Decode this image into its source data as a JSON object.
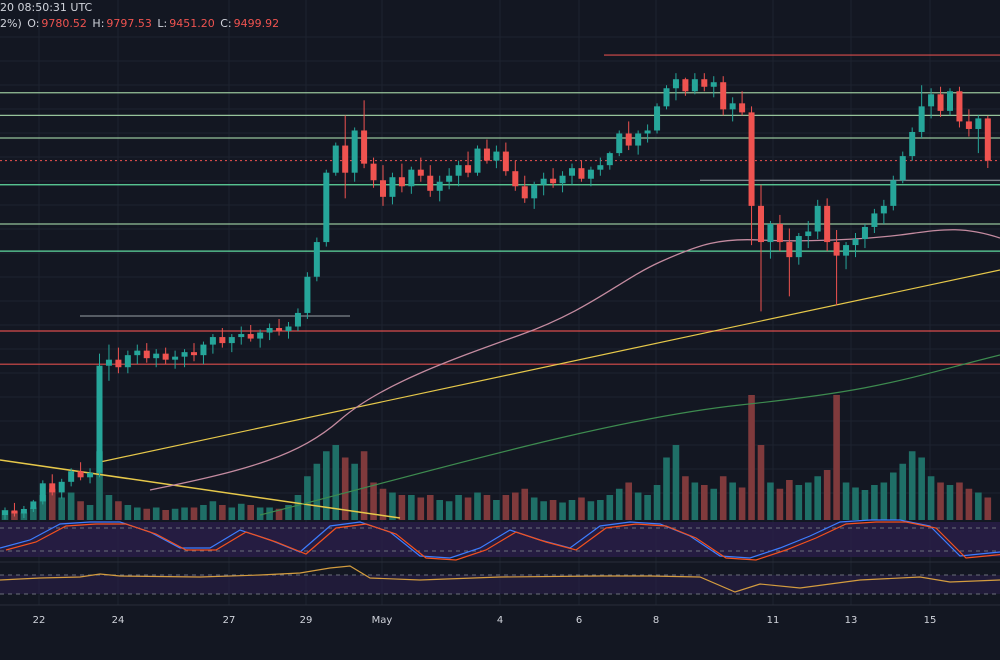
{
  "header": {
    "datetime": "20 08:50:31 UTC",
    "change_pct": "2%)",
    "o_label": "O:",
    "o_value": "9780.52",
    "h_label": "H:",
    "h_value": "9797.53",
    "l_label": "L:",
    "l_value": "9451.20",
    "c_label": "C:",
    "c_value": "9499.92"
  },
  "x_ticks": [
    "22",
    "24",
    "27",
    "29",
    "May",
    "4",
    "6",
    "8",
    "11",
    "13",
    "15"
  ],
  "colors": {
    "background": "#131722",
    "up": "#26a69a",
    "down": "#ef5350",
    "volume_up": "#1f6f67",
    "volume_down": "#7f3a3c",
    "hline_green": "#a5d6a7",
    "hline_bright_green": "#69f0ae",
    "hline_red": "#ef5350",
    "ma_pink": "#c48ba0",
    "ma_yellow": "#e6c84a",
    "ma_green": "#3d8b4f",
    "stoch_blue": "#3d7dff",
    "stoch_red": "#f4511e",
    "rsi_orange": "#d39c3f",
    "panel_fill": "#2a1e4a"
  },
  "chart_data": {
    "type": "candlestick",
    "title": "",
    "price_range": [
      7150,
      10300
    ],
    "horizontal_levels": [
      {
        "price": 10200,
        "color": "red"
      },
      {
        "price": 9950,
        "color": "green"
      },
      {
        "price": 9800,
        "color": "green"
      },
      {
        "price": 9650,
        "color": "green"
      },
      {
        "price": 9340,
        "color": "bright-green"
      },
      {
        "price": 9080,
        "color": "green"
      },
      {
        "price": 8900,
        "color": "bright-green"
      },
      {
        "price": 8370,
        "color": "red"
      },
      {
        "price": 8150,
        "color": "red"
      }
    ],
    "candles_ohlc": [
      [
        7150,
        7200,
        7120,
        7180
      ],
      [
        7180,
        7230,
        7140,
        7160
      ],
      [
        7160,
        7210,
        7130,
        7190
      ],
      [
        7190,
        7250,
        7170,
        7240
      ],
      [
        7240,
        7380,
        7220,
        7360
      ],
      [
        7360,
        7420,
        7280,
        7300
      ],
      [
        7300,
        7390,
        7260,
        7370
      ],
      [
        7370,
        7460,
        7340,
        7440
      ],
      [
        7440,
        7500,
        7380,
        7400
      ],
      [
        7400,
        7460,
        7360,
        7430
      ],
      [
        7430,
        8220,
        7400,
        8140
      ],
      [
        8140,
        8280,
        8040,
        8180
      ],
      [
        8180,
        8260,
        8090,
        8130
      ],
      [
        8130,
        8240,
        8090,
        8210
      ],
      [
        8210,
        8280,
        8150,
        8240
      ],
      [
        8240,
        8290,
        8160,
        8190
      ],
      [
        8190,
        8250,
        8130,
        8220
      ],
      [
        8220,
        8260,
        8150,
        8180
      ],
      [
        8180,
        8240,
        8120,
        8200
      ],
      [
        8200,
        8250,
        8130,
        8230
      ],
      [
        8230,
        8290,
        8170,
        8210
      ],
      [
        8210,
        8300,
        8150,
        8280
      ],
      [
        8280,
        8350,
        8220,
        8330
      ],
      [
        8330,
        8390,
        8260,
        8290
      ],
      [
        8290,
        8350,
        8230,
        8330
      ],
      [
        8330,
        8400,
        8280,
        8350
      ],
      [
        8350,
        8410,
        8300,
        8320
      ],
      [
        8320,
        8380,
        8260,
        8360
      ],
      [
        8360,
        8420,
        8310,
        8390
      ],
      [
        8390,
        8450,
        8340,
        8370
      ],
      [
        8370,
        8430,
        8320,
        8400
      ],
      [
        8400,
        8520,
        8370,
        8490
      ],
      [
        8490,
        8760,
        8450,
        8730
      ],
      [
        8730,
        8990,
        8700,
        8960
      ],
      [
        8960,
        9440,
        8930,
        9420
      ],
      [
        9420,
        9620,
        9400,
        9600
      ],
      [
        9600,
        9800,
        9250,
        9420
      ],
      [
        9420,
        9720,
        9360,
        9700
      ],
      [
        9700,
        9900,
        9450,
        9480
      ],
      [
        9480,
        9520,
        9320,
        9370
      ],
      [
        9370,
        9470,
        9200,
        9260
      ],
      [
        9260,
        9420,
        9210,
        9390
      ],
      [
        9390,
        9480,
        9290,
        9330
      ],
      [
        9330,
        9460,
        9280,
        9440
      ],
      [
        9440,
        9520,
        9360,
        9400
      ],
      [
        9400,
        9470,
        9260,
        9300
      ],
      [
        9300,
        9400,
        9230,
        9360
      ],
      [
        9360,
        9450,
        9310,
        9400
      ],
      [
        9400,
        9500,
        9330,
        9470
      ],
      [
        9470,
        9560,
        9390,
        9420
      ],
      [
        9420,
        9600,
        9400,
        9580
      ],
      [
        9580,
        9640,
        9480,
        9500
      ],
      [
        9500,
        9600,
        9450,
        9560
      ],
      [
        9560,
        9620,
        9400,
        9430
      ],
      [
        9430,
        9500,
        9300,
        9330
      ],
      [
        9330,
        9400,
        9220,
        9250
      ],
      [
        9250,
        9360,
        9180,
        9340
      ],
      [
        9340,
        9420,
        9270,
        9380
      ],
      [
        9380,
        9450,
        9320,
        9350
      ],
      [
        9350,
        9430,
        9290,
        9400
      ],
      [
        9400,
        9480,
        9340,
        9450
      ],
      [
        9450,
        9500,
        9360,
        9380
      ],
      [
        9380,
        9460,
        9330,
        9440
      ],
      [
        9440,
        9520,
        9400,
        9470
      ],
      [
        9470,
        9560,
        9440,
        9550
      ],
      [
        9550,
        9700,
        9530,
        9680
      ],
      [
        9680,
        9760,
        9570,
        9600
      ],
      [
        9600,
        9700,
        9540,
        9680
      ],
      [
        9680,
        9740,
        9620,
        9700
      ],
      [
        9700,
        9880,
        9680,
        9860
      ],
      [
        9860,
        10000,
        9840,
        9980
      ],
      [
        9980,
        10080,
        9900,
        10040
      ],
      [
        10040,
        10050,
        9930,
        9960
      ],
      [
        9960,
        10080,
        9940,
        10040
      ],
      [
        10040,
        10080,
        9960,
        9990
      ],
      [
        9990,
        10060,
        9920,
        10020
      ],
      [
        10020,
        10060,
        9800,
        9840
      ],
      [
        9840,
        9920,
        9760,
        9880
      ],
      [
        9880,
        9960,
        9800,
        9820
      ],
      [
        9820,
        9860,
        8940,
        9200
      ],
      [
        9200,
        9340,
        8500,
        8960
      ],
      [
        8960,
        9100,
        8850,
        9080
      ],
      [
        9080,
        9140,
        8900,
        8960
      ],
      [
        8960,
        9050,
        8600,
        8860
      ],
      [
        8860,
        9020,
        8810,
        9000
      ],
      [
        9000,
        9100,
        8920,
        9030
      ],
      [
        9030,
        9240,
        8980,
        9200
      ],
      [
        9200,
        9250,
        8900,
        8960
      ],
      [
        8960,
        9040,
        8540,
        8870
      ],
      [
        8870,
        8960,
        8780,
        8940
      ],
      [
        8940,
        9020,
        8860,
        8980
      ],
      [
        8980,
        9080,
        8920,
        9060
      ],
      [
        9060,
        9180,
        9020,
        9150
      ],
      [
        9150,
        9240,
        9080,
        9200
      ],
      [
        9200,
        9400,
        9170,
        9370
      ],
      [
        9370,
        9560,
        9350,
        9530
      ],
      [
        9530,
        9720,
        9500,
        9690
      ],
      [
        9690,
        10000,
        9650,
        9860
      ],
      [
        9860,
        9980,
        9780,
        9940
      ],
      [
        9940,
        9990,
        9790,
        9830
      ],
      [
        9830,
        9980,
        9800,
        9960
      ],
      [
        9960,
        9990,
        9720,
        9760
      ],
      [
        9760,
        9840,
        9660,
        9710
      ],
      [
        9710,
        9800,
        9550,
        9780
      ],
      [
        9780,
        9797,
        9451,
        9500
      ]
    ],
    "volume_relative": [
      0.08,
      0.07,
      0.06,
      0.1,
      0.2,
      0.25,
      0.18,
      0.22,
      0.15,
      0.12,
      0.55,
      0.2,
      0.15,
      0.12,
      0.1,
      0.09,
      0.1,
      0.08,
      0.09,
      0.1,
      0.1,
      0.12,
      0.15,
      0.12,
      0.1,
      0.13,
      0.12,
      0.1,
      0.1,
      0.09,
      0.12,
      0.2,
      0.35,
      0.45,
      0.55,
      0.6,
      0.5,
      0.45,
      0.55,
      0.3,
      0.25,
      0.22,
      0.2,
      0.2,
      0.18,
      0.2,
      0.16,
      0.15,
      0.2,
      0.18,
      0.22,
      0.2,
      0.16,
      0.2,
      0.22,
      0.25,
      0.18,
      0.15,
      0.16,
      0.14,
      0.16,
      0.18,
      0.15,
      0.16,
      0.2,
      0.25,
      0.3,
      0.22,
      0.2,
      0.28,
      0.5,
      0.6,
      0.35,
      0.3,
      0.28,
      0.25,
      0.35,
      0.3,
      0.26,
      1.0,
      0.6,
      0.3,
      0.25,
      0.32,
      0.28,
      0.3,
      0.35,
      0.4,
      1.0,
      0.3,
      0.26,
      0.24,
      0.28,
      0.3,
      0.38,
      0.45,
      0.55,
      0.5,
      0.35,
      0.3,
      0.28,
      0.3,
      0.25,
      0.22,
      0.18
    ]
  }
}
